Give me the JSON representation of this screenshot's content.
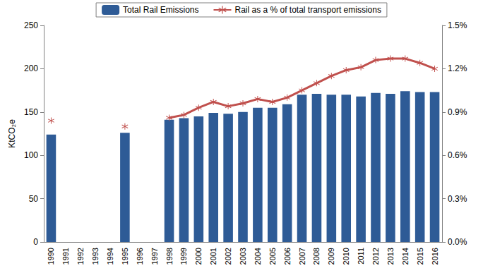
{
  "chart_data": {
    "type": "bar",
    "categories": [
      "1990",
      "1991",
      "1992",
      "1993",
      "1994",
      "1995",
      "1996",
      "1997",
      "1998",
      "1999",
      "2000",
      "2001",
      "2002",
      "2003",
      "2004",
      "2005",
      "2006",
      "2007",
      "2008",
      "2009",
      "2010",
      "2011",
      "2012",
      "2013",
      "2014",
      "2015",
      "2016"
    ],
    "series": [
      {
        "name": "Total Rail Emissions",
        "type": "bar",
        "color": "#2e5b96",
        "values": [
          124,
          null,
          null,
          null,
          null,
          126,
          null,
          null,
          141,
          143,
          145,
          149,
          148,
          150,
          155,
          155,
          159,
          170,
          171,
          170,
          170,
          168,
          172,
          171,
          174,
          173,
          173
        ]
      },
      {
        "name": "Rail as a % of total transport emissions",
        "type": "line",
        "axis": "y2",
        "color": "#c0504d",
        "marker": "asterisk",
        "line_style": "solid",
        "values": [
          0.84,
          null,
          null,
          null,
          null,
          0.8,
          null,
          null,
          0.86,
          0.88,
          0.93,
          0.97,
          0.94,
          0.96,
          0.99,
          0.97,
          1.0,
          1.05,
          1.1,
          1.15,
          1.19,
          1.21,
          1.26,
          1.27,
          1.27,
          1.24,
          1.2
        ]
      }
    ],
    "ylabel": "KtCO₂e",
    "ylim": [
      0,
      250
    ],
    "yticks": [
      0,
      50,
      100,
      150,
      200,
      250
    ],
    "y2lim": [
      0,
      1.5
    ],
    "y2ticks": [
      {
        "value": 0,
        "label": "0.0%"
      },
      {
        "value": 0.3,
        "label": "0.3%"
      },
      {
        "value": 0.6,
        "label": "0.6%"
      },
      {
        "value": 0.9,
        "label": "0.9%"
      },
      {
        "value": 1.2,
        "label": "1.2%"
      },
      {
        "value": 1.5,
        "label": "1.5%"
      }
    ],
    "grid": false,
    "legend": "top"
  }
}
